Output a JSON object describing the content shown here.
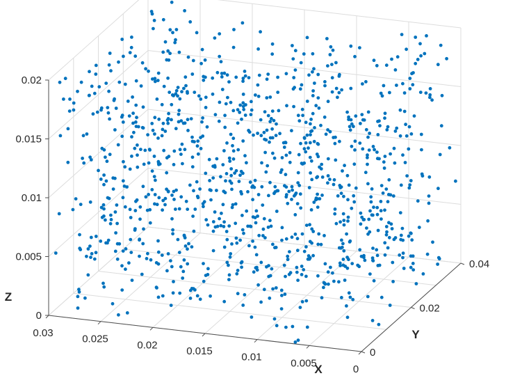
{
  "chart_data": {
    "type": "scatter",
    "title": "",
    "xlabel": "X",
    "ylabel": "Y",
    "zlabel": "Z",
    "xlim": [
      0,
      0.03
    ],
    "ylim": [
      0,
      0.04
    ],
    "zlim": [
      0,
      0.02
    ],
    "x_ticks": [
      "0",
      "0.005",
      "0.01",
      "0.015",
      "0.02",
      "0.025",
      "0.03"
    ],
    "y_ticks": [
      "0",
      "0.02",
      "0.04"
    ],
    "z_ticks": [
      "0",
      "0.005",
      "0.01",
      "0.015",
      "0.02"
    ],
    "grid": true,
    "marker_color": "#0072BD",
    "point_count": 1100,
    "distribution": "uniform random within the axis box"
  }
}
